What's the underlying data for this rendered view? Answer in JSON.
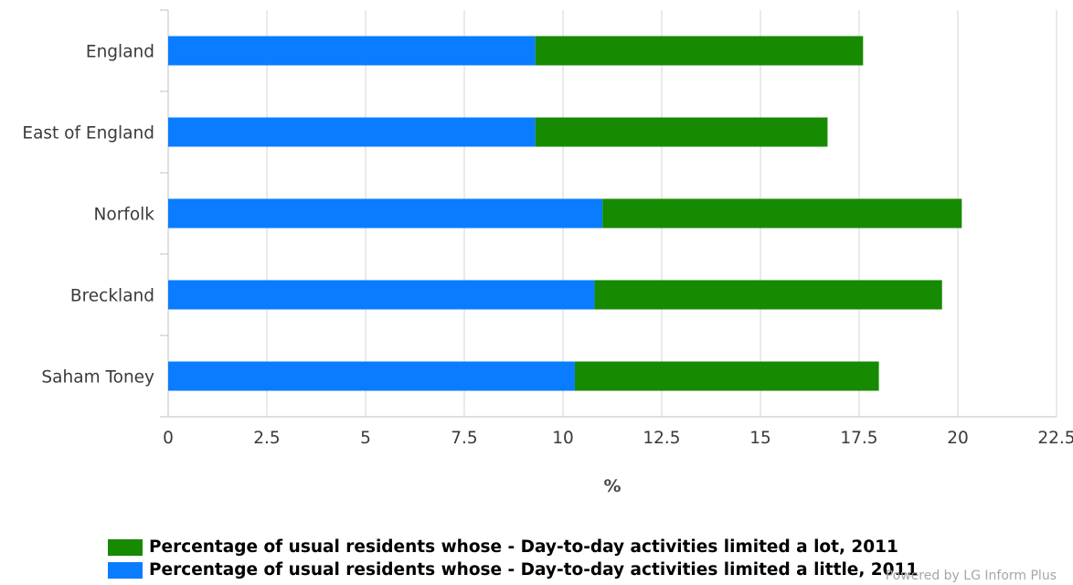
{
  "chart_data": {
    "type": "bar",
    "orientation": "horizontal",
    "stacked": true,
    "categories": [
      "England",
      "East of England",
      "Norfolk",
      "Breckland",
      "Saham Toney"
    ],
    "series": [
      {
        "name": "Percentage of usual residents whose - Day-to-day activities limited a little, 2011",
        "color": "#0a7cff",
        "values": [
          9.3,
          9.3,
          11.0,
          10.8,
          10.3
        ]
      },
      {
        "name": "Percentage of usual residents whose - Day-to-day activities limited a lot, 2011",
        "color": "#168a00",
        "values": [
          8.3,
          7.4,
          9.1,
          8.8,
          7.7
        ]
      }
    ],
    "xlabel": "%",
    "ylabel": "",
    "xlim": [
      0,
      22.5
    ],
    "xticks": [
      "0",
      "2.5",
      "5",
      "7.5",
      "10",
      "12.5",
      "15",
      "17.5",
      "20",
      "22.5"
    ],
    "grid": true,
    "legend_position": "bottom-left"
  },
  "legend": {
    "items": [
      {
        "label": "Percentage of usual residents whose - Day-to-day activities limited a lot, 2011",
        "color": "#168a00"
      },
      {
        "label": "Percentage of usual residents whose - Day-to-day activities limited a little, 2011",
        "color": "#0a7cff"
      }
    ]
  },
  "footer": {
    "credit": "Powered by LG Inform Plus"
  }
}
